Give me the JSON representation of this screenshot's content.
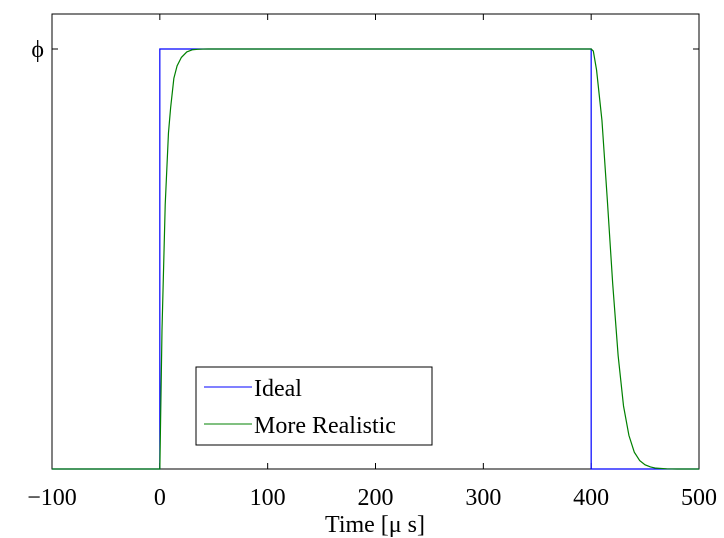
{
  "chart_data": {
    "type": "line",
    "title": "",
    "xlabel": "Time [μ s]",
    "ylabel": "",
    "xlim": [
      -100,
      500
    ],
    "ylim": [
      0,
      1
    ],
    "xticks": [
      -100,
      0,
      100,
      200,
      300,
      400,
      500
    ],
    "xtick_labels": [
      "−100",
      "0",
      "100",
      "200",
      "300",
      "400",
      "500"
    ],
    "yticks": [
      1
    ],
    "ytick_labels": [
      "ϕ"
    ],
    "grid": false,
    "legend_position": "lower-left",
    "series": [
      {
        "name": "Ideal",
        "color": "#0000ff",
        "x": [
          -100,
          0,
          0,
          400,
          400,
          500
        ],
        "y": [
          0,
          0,
          1,
          1,
          0,
          0
        ]
      },
      {
        "name": "More Realistic",
        "color": "#008000",
        "x": [
          -100,
          0,
          2,
          5,
          8,
          10,
          13,
          16,
          20,
          25,
          30,
          35,
          40,
          45,
          50,
          60,
          70,
          80,
          90,
          400,
          402,
          405,
          410,
          415,
          420,
          425,
          430,
          435,
          440,
          445,
          450,
          455,
          460,
          470,
          480,
          500
        ],
        "y": [
          0,
          0,
          0.33,
          0.63,
          0.8,
          0.86,
          0.93,
          0.96,
          0.98,
          0.993,
          0.998,
          0.9993,
          0.9998,
          1,
          1,
          1,
          1,
          1,
          1,
          1,
          0.995,
          0.95,
          0.83,
          0.64,
          0.44,
          0.27,
          0.15,
          0.08,
          0.04,
          0.02,
          0.01,
          0.005,
          0.002,
          0.0005,
          0,
          0
        ]
      }
    ]
  }
}
